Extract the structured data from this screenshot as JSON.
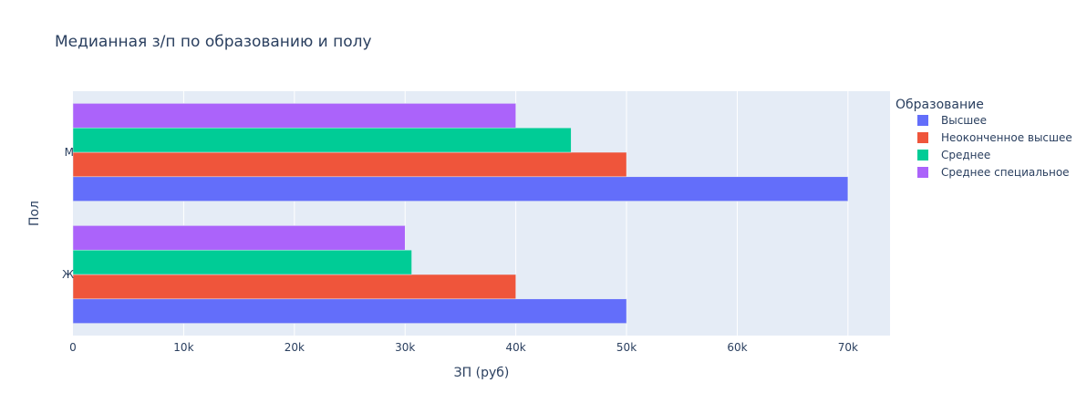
{
  "chart_data": {
    "type": "bar",
    "orientation": "horizontal",
    "title": "Медианная з/п по образованию и полу",
    "xlabel": "ЗП (руб)",
    "ylabel": "Пол",
    "categories": [
      "М",
      "Ж"
    ],
    "xlim": [
      0,
      73800
    ],
    "x_ticks": [
      0,
      10000,
      20000,
      30000,
      40000,
      50000,
      60000,
      70000
    ],
    "x_tick_labels": [
      "0",
      "10k",
      "20k",
      "30k",
      "40k",
      "50k",
      "60k",
      "70k"
    ],
    "grid": true,
    "legend_title": "Образование",
    "legend_position": "right",
    "series": [
      {
        "name": "Высшее",
        "color": "#636efa",
        "values": [
          70000,
          50000
        ]
      },
      {
        "name": "Неоконченное высшее",
        "color": "#ef553b",
        "values": [
          50000,
          40000
        ]
      },
      {
        "name": "Среднее",
        "color": "#00cc96",
        "values": [
          45000,
          30600
        ]
      },
      {
        "name": "Среднее специальное",
        "color": "#ab63fa",
        "values": [
          40000,
          30000
        ]
      }
    ]
  },
  "colors": {
    "plot_background": "#e5ecf6",
    "grid": "#ffffff",
    "text": "#2a3f5f"
  }
}
